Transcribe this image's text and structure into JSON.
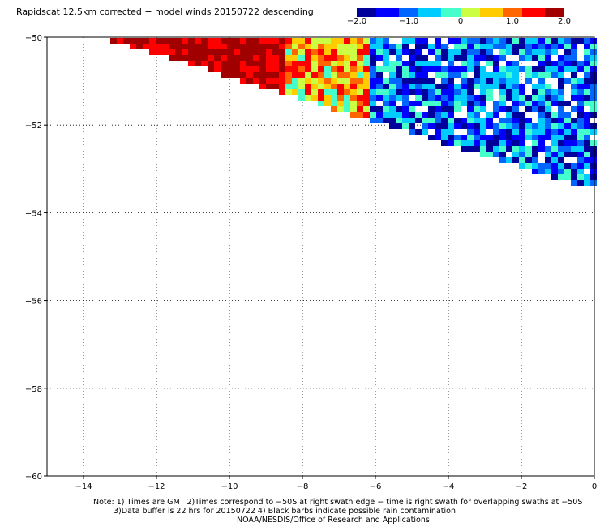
{
  "title": "Rapidscat 12.5km corrected − model winds 20150722 descending",
  "colorbar": {
    "min": -2.0,
    "max": 2.0,
    "ticks": [
      "−2.0",
      "−1.0",
      "0",
      "1.0",
      "2.0"
    ],
    "tick_values": [
      -2.0,
      -1.0,
      0.0,
      1.0,
      2.0
    ],
    "colors": [
      "#00009a",
      "#0000ff",
      "#0066ff",
      "#00ccff",
      "#44ffcc",
      "#ccff44",
      "#ffcc00",
      "#ff6600",
      "#ff0000",
      "#a00000"
    ]
  },
  "map": {
    "lon_range": [
      -15,
      0
    ],
    "lat_range": [
      -50,
      -60
    ],
    "x_ticks": [
      "−14",
      "−12",
      "−10",
      "−8",
      "−6",
      "−4",
      "−2",
      "0"
    ],
    "x_tick_values": [
      -14,
      -12,
      -10,
      -8,
      -6,
      -4,
      -2,
      0
    ],
    "y_ticks": [
      "−50",
      "−52",
      "−54",
      "−56",
      "−58",
      "−60"
    ],
    "y_tick_values": [
      -50,
      -52,
      -54,
      -56,
      -58,
      -60
    ],
    "gridlines": true
  },
  "notes": [
    "Note: 1) Times are GMT 2)Times correspond to −50S at right swath edge − time is right swath for overlapping swaths at −50S",
    "3)Data buffer is 22 hrs for 20150722 4) Black barbs indicate possible rain contamination",
    "NOAA/NESDIS/Office of Research and Applications"
  ]
}
